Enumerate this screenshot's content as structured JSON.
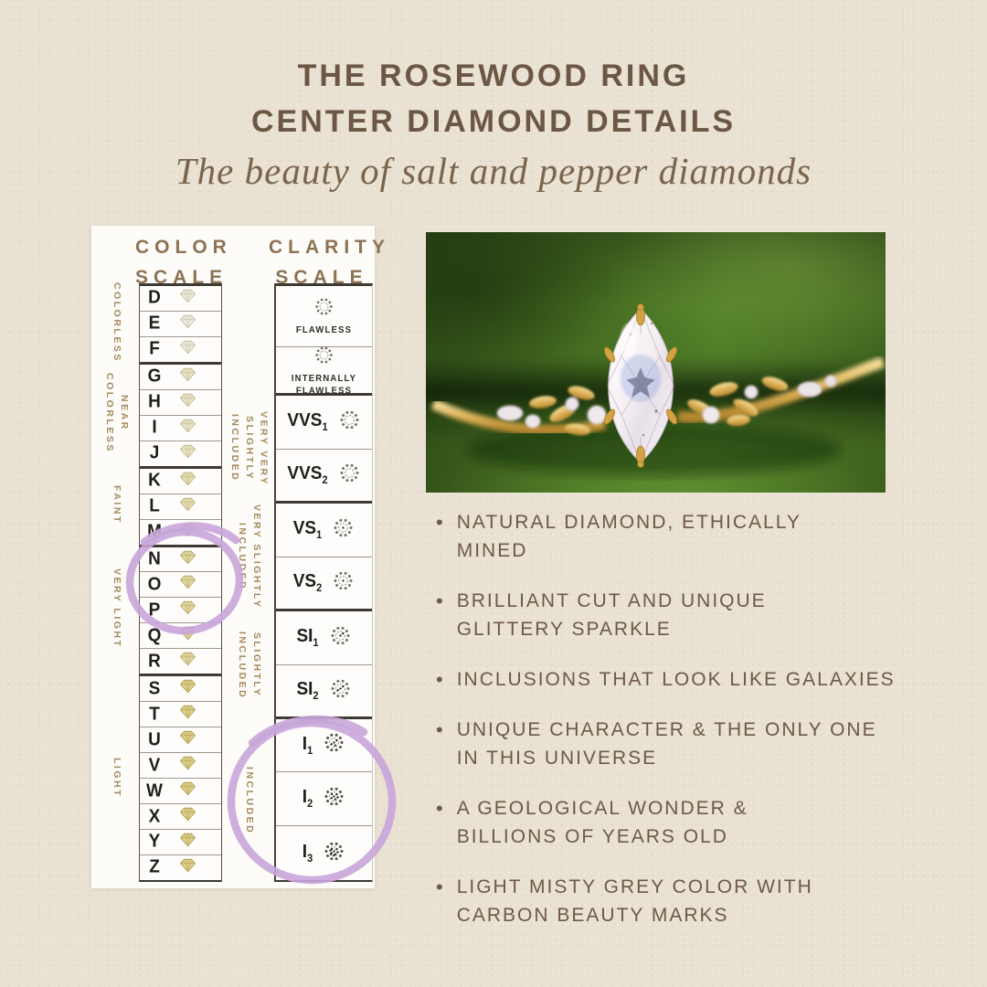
{
  "header": {
    "title_line1": "THE ROSEWOOD RING",
    "title_line2": "CENTER DIAMOND DETAILS",
    "subtitle": "The beauty of salt and pepper diamonds"
  },
  "color_scale": {
    "heading_line1": "COLOR",
    "heading_line2": "SCALE",
    "groups": [
      {
        "label": "COLORLESS",
        "grades": [
          "D",
          "E",
          "F"
        ],
        "tint": "#eeeadf",
        "tint_stroke": "#c6c0a4"
      },
      {
        "label": "NEAR COLORLESS",
        "grades": [
          "G",
          "H",
          "I",
          "J"
        ],
        "tint": "#eae5c9",
        "tint_stroke": "#c2ba8e"
      },
      {
        "label": "FAINT",
        "grades": [
          "K",
          "L",
          "M"
        ],
        "tint": "#e6dfb6",
        "tint_stroke": "#bdb27c"
      },
      {
        "label": "VERY LIGHT",
        "grades": [
          "N",
          "O",
          "P",
          "Q",
          "R"
        ],
        "tint": "#e1d8a2",
        "tint_stroke": "#b7a966"
      },
      {
        "label": "LIGHT",
        "grades": [
          "S",
          "T",
          "U",
          "V",
          "W",
          "X",
          "Y",
          "Z"
        ],
        "tint": "#ddcf8c",
        "tint_stroke": "#b1a050"
      }
    ],
    "highlighted_grades": [
      "N",
      "O",
      "P"
    ]
  },
  "clarity_scale": {
    "heading_line1": "CLARITY",
    "heading_line2": "SCALE",
    "groups": [
      {
        "label": "",
        "cells": [
          {
            "style": "stacked",
            "lines": [
              "FLAWLESS"
            ],
            "inclusions": 0,
            "height": 68
          },
          {
            "style": "stacked",
            "lines": [
              "INTERNALLY",
              "FLAWLESS"
            ],
            "inclusions": 0,
            "height": 53
          }
        ]
      },
      {
        "label": "VERY VERY\nSLIGHTLY INCLUDED",
        "cells": [
          {
            "base": "VVS",
            "sub": "1",
            "inclusions": 0
          },
          {
            "base": "VVS",
            "sub": "2",
            "inclusions": 0
          }
        ]
      },
      {
        "label": "VERY SLIGHTLY\nINCLUDED",
        "cells": [
          {
            "base": "VS",
            "sub": "1",
            "inclusions": 1
          },
          {
            "base": "VS",
            "sub": "2",
            "inclusions": 1
          }
        ]
      },
      {
        "label": "SLIGHTLY INCLUDED",
        "cells": [
          {
            "base": "SI",
            "sub": "1",
            "inclusions": 2
          },
          {
            "base": "SI",
            "sub": "2",
            "inclusions": 3
          }
        ]
      },
      {
        "label": "INCLUDED",
        "cells": [
          {
            "base": "I",
            "sub": "1",
            "inclusions": 4
          },
          {
            "base": "I",
            "sub": "2",
            "inclusions": 6
          },
          {
            "base": "I",
            "sub": "3",
            "inclusions": 9
          }
        ]
      }
    ],
    "highlighted_grades": [
      "I1",
      "I2",
      "I3"
    ]
  },
  "bullets": [
    {
      "lines": [
        "NATURAL DIAMOND, ETHICALLY",
        "MINED"
      ]
    },
    {
      "lines": [
        "BRILLIANT CUT AND UNIQUE",
        "GLITTERY SPARKLE"
      ]
    },
    {
      "lines": [
        "INCLUSIONS THAT LOOK LIKE GALAXIES"
      ]
    },
    {
      "lines": [
        "UNIQUE CHARACTER & THE ONLY ONE",
        "IN THIS UNIVERSE"
      ]
    },
    {
      "lines": [
        "A GEOLOGICAL WONDER &",
        "BILLIONS OF YEARS OLD"
      ]
    },
    {
      "lines": [
        "LIGHT MISTY GREY COLOR WITH",
        "CARBON BEAUTY MARKS"
      ]
    }
  ],
  "colors": {
    "background": "#e9e1d2",
    "text_brown": "#6d5946",
    "heading_tan": "#8d7254",
    "side_label_tan": "#a3885c",
    "highlight_purple": "#c8a5d9",
    "panel_white": "#fdfcf8",
    "velvet_green": "#46691f",
    "gold": "#d9ae55"
  }
}
